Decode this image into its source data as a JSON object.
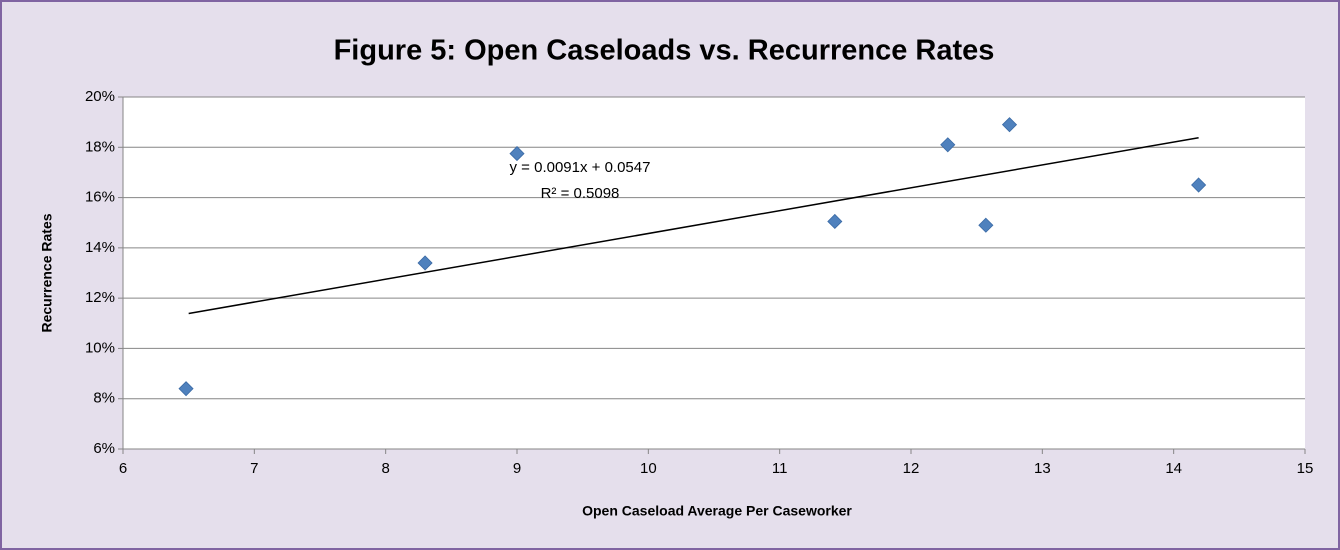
{
  "chart_data": {
    "type": "scatter",
    "title": "Figure 5:  Open Caseloads vs. Recurrence Rates",
    "x_label": "Open Caseload Average Per Caseworker",
    "y_label": "Recurrence Rates",
    "series": [
      {
        "color": "#4f81bd",
        "x": [
          6.48,
          8.3,
          9.0,
          11.42,
          12.28,
          12.57,
          12.75,
          14.19
        ],
        "values": [
          8.4,
          13.4,
          17.75,
          15.05,
          18.1,
          14.9,
          18.9,
          16.5
        ]
      }
    ],
    "trendline": {
      "color": "#000000",
      "x": [
        6.5,
        14.19
      ],
      "values": [
        11.39,
        18.38
      ]
    },
    "annotations": [
      "y = 0.0091x + 0.0547",
      "R² = 0.5098"
    ],
    "xlim": [
      6,
      15
    ],
    "xticks": [
      6,
      7,
      8,
      9,
      10,
      11,
      12,
      13,
      14,
      15
    ],
    "ylim": [
      6,
      20
    ],
    "yticks": [
      {
        "value": 6,
        "label": "6%"
      },
      {
        "value": 8,
        "label": "8%"
      },
      {
        "value": 10,
        "label": "10%"
      },
      {
        "value": 12,
        "label": "12%"
      },
      {
        "value": 14,
        "label": "14%"
      },
      {
        "value": 16,
        "label": "16%"
      },
      {
        "value": 18,
        "label": "18%"
      },
      {
        "value": 20,
        "label": "20%"
      }
    ],
    "grid": true
  }
}
